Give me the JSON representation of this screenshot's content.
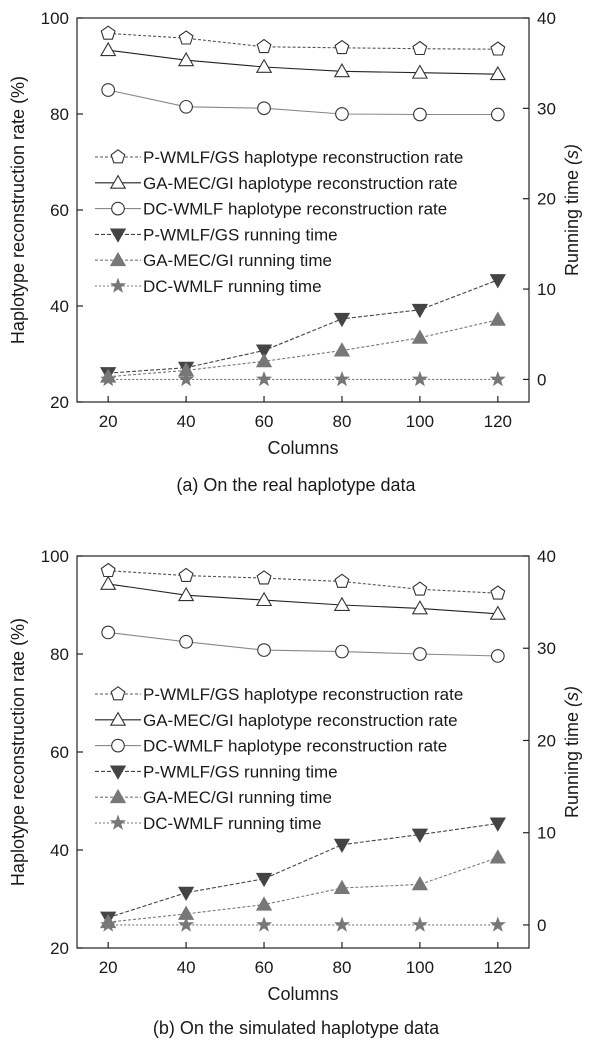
{
  "chart_data": [
    {
      "type": "line",
      "caption": "(a) On the real haplotype data",
      "xlabel": "Columns",
      "ylabel_left": "Haplotype reconstruction rate (%)",
      "ylabel_right_main": "Running time ",
      "ylabel_right_unit": "(s)",
      "x": [
        20,
        40,
        60,
        80,
        100,
        120
      ],
      "xlim": [
        12,
        128
      ],
      "ylim_left": [
        20,
        100
      ],
      "ylim_right": [
        -2.5,
        40
      ],
      "xticks": [
        20,
        40,
        60,
        80,
        100,
        120
      ],
      "yticks_left": [
        20,
        40,
        60,
        80,
        100
      ],
      "yticks_right": [
        0,
        10,
        20,
        30,
        40
      ],
      "legend_position": "center-left",
      "series": [
        {
          "name": "P-WMLF/GS haplotype reconstruction rate",
          "axis": "left",
          "marker": "pentagon-open",
          "color": "#555555",
          "dash": "3,2",
          "values": [
            96.8,
            95.8,
            94.0,
            93.8,
            93.6,
            93.5
          ]
        },
        {
          "name": "GA-MEC/GI haplotype reconstruction rate",
          "axis": "left",
          "marker": "triangle-up-open",
          "color": "#222222",
          "dash": "",
          "values": [
            93.3,
            91.2,
            89.8,
            88.9,
            88.6,
            88.3
          ]
        },
        {
          "name": "DC-WMLF haplotype reconstruction rate",
          "axis": "left",
          "marker": "circle-open",
          "color": "#888888",
          "dash": "",
          "values": [
            85.0,
            81.5,
            81.2,
            80.0,
            79.9,
            79.9
          ]
        },
        {
          "name": "P-WMLF/GS running time",
          "axis": "right",
          "marker": "triangle-down-filled",
          "color": "#444444",
          "dash": "4,2",
          "values": [
            0.7,
            1.3,
            3.2,
            6.7,
            7.7,
            11.0
          ]
        },
        {
          "name": "GA-MEC/GI running time",
          "axis": "right",
          "marker": "triangle-up-filled",
          "color": "#777777",
          "dash": "3,2",
          "values": [
            0.3,
            1.0,
            2.0,
            3.2,
            4.6,
            6.6
          ]
        },
        {
          "name": "DC-WMLF running time",
          "axis": "right",
          "marker": "star-filled",
          "color": "#777777",
          "dash": "2,2",
          "values": [
            0.0,
            0.0,
            0.0,
            0.0,
            0.0,
            0.0
          ]
        }
      ]
    },
    {
      "type": "line",
      "caption": "(b) On the simulated haplotype data",
      "xlabel": "Columns",
      "ylabel_left": "Haplotype reconstruction rate (%)",
      "ylabel_right_main": "Running time ",
      "ylabel_right_unit": "(s)",
      "x": [
        20,
        40,
        60,
        80,
        100,
        120
      ],
      "xlim": [
        12,
        128
      ],
      "ylim_left": [
        20,
        100
      ],
      "ylim_right": [
        -2.5,
        40
      ],
      "xticks": [
        20,
        40,
        60,
        80,
        100,
        120
      ],
      "yticks_left": [
        20,
        40,
        60,
        80,
        100
      ],
      "yticks_right": [
        0,
        10,
        20,
        30,
        40
      ],
      "legend_position": "center-left",
      "series": [
        {
          "name": "P-WMLF/GS haplotype reconstruction rate",
          "axis": "left",
          "marker": "pentagon-open",
          "color": "#555555",
          "dash": "3,2",
          "values": [
            97.0,
            96.0,
            95.5,
            94.8,
            93.2,
            92.4
          ]
        },
        {
          "name": "GA-MEC/GI haplotype reconstruction rate",
          "axis": "left",
          "marker": "triangle-up-open",
          "color": "#222222",
          "dash": "",
          "values": [
            94.3,
            92.0,
            91.0,
            90.0,
            89.3,
            88.2
          ]
        },
        {
          "name": "DC-WMLF haplotype reconstruction rate",
          "axis": "left",
          "marker": "circle-open",
          "color": "#888888",
          "dash": "",
          "values": [
            84.4,
            82.5,
            80.8,
            80.5,
            80.0,
            79.6
          ]
        },
        {
          "name": "P-WMLF/GS running time",
          "axis": "right",
          "marker": "triangle-down-filled",
          "color": "#444444",
          "dash": "4,2",
          "values": [
            0.8,
            3.5,
            5.0,
            8.7,
            9.8,
            11.0
          ]
        },
        {
          "name": "GA-MEC/GI running time",
          "axis": "right",
          "marker": "triangle-up-filled",
          "color": "#777777",
          "dash": "3,2",
          "values": [
            0.3,
            1.2,
            2.2,
            4.0,
            4.4,
            7.3
          ]
        },
        {
          "name": "DC-WMLF running time",
          "axis": "right",
          "marker": "star-filled",
          "color": "#777777",
          "dash": "2,2",
          "values": [
            0.0,
            0.0,
            0.0,
            0.0,
            0.0,
            0.0
          ]
        }
      ]
    }
  ]
}
